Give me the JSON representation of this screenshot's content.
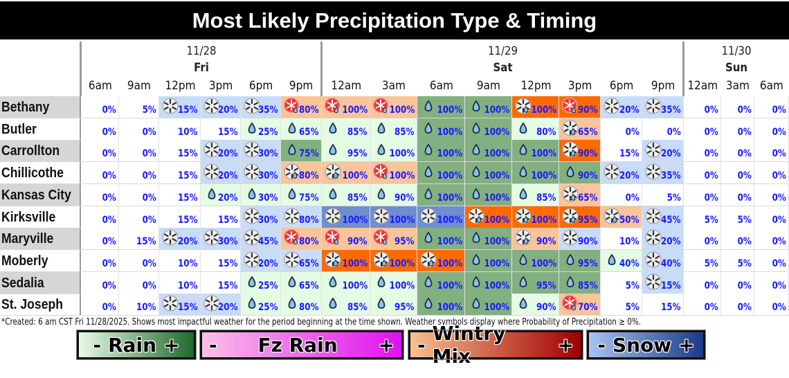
{
  "title": "Most Likely Precipitation Type & Timing",
  "colors": {
    "none": "#ffffff",
    "rain_light": "#e4fbe4",
    "rain_heavy": "#82b080",
    "snow_light": "#c8dcf8",
    "snow_heavy": "#6e8ed0",
    "mix_light": "#f8c49a",
    "mix_heavy": "#ff6a00",
    "pct_text": "#1a1aff"
  },
  "days": [
    {
      "date": "11/28",
      "name": "Fri"
    },
    {
      "date": "11/29",
      "name": "Sat"
    },
    {
      "date": "11/30",
      "name": "Sun"
    }
  ],
  "times": [
    "6am",
    "9am",
    "12pm",
    "3pm",
    "6pm",
    "9pm",
    "12am",
    "3am",
    "6am",
    "9am",
    "12pm",
    "3pm",
    "6pm",
    "9pm",
    "12am",
    "3am",
    "6am"
  ],
  "chart_data": {
    "type": "table",
    "title": "Most Likely Precipitation Type & Timing",
    "columns": [
      "Fri 6am",
      "Fri 9am",
      "Fri 12pm",
      "Fri 3pm",
      "Fri 6pm",
      "Fri 9pm",
      "Sat 12am",
      "Sat 3am",
      "Sat 6am",
      "Sat 9am",
      "Sat 12pm",
      "Sat 3pm",
      "Sat 6pm",
      "Sat 9pm",
      "Sun 12am",
      "Sun 3am",
      "Sun 6am"
    ],
    "legend": [
      "Rain",
      "Fz Rain",
      "Wintry Mix",
      "Snow"
    ],
    "rows": [
      {
        "city": "Bethany",
        "shade": true,
        "cells": [
          {
            "p": "0%",
            "t": "none"
          },
          {
            "p": "5%",
            "t": "none"
          },
          {
            "p": "15%",
            "t": "snow_light",
            "i": "snow"
          },
          {
            "p": "20%",
            "t": "snow_light",
            "i": "snow"
          },
          {
            "p": "35%",
            "t": "snow_light",
            "i": "snow"
          },
          {
            "p": "80%",
            "t": "mix_light",
            "i": "fzmix"
          },
          {
            "p": "100%",
            "t": "mix_light",
            "i": "fzmix"
          },
          {
            "p": "100%",
            "t": "mix_light",
            "i": "fzmix"
          },
          {
            "p": "100%",
            "t": "rain_heavy",
            "i": "rain"
          },
          {
            "p": "100%",
            "t": "rain_heavy",
            "i": "rain"
          },
          {
            "p": "100%",
            "t": "mix_heavy",
            "i": "snowmix"
          },
          {
            "p": "90%",
            "t": "mix_heavy",
            "i": "fzmix"
          },
          {
            "p": "20%",
            "t": "snow_light",
            "i": "snow"
          },
          {
            "p": "35%",
            "t": "snow_light",
            "i": "snow"
          },
          {
            "p": "0%",
            "t": "none"
          },
          {
            "p": "0%",
            "t": "none"
          },
          {
            "p": "0%",
            "t": "none"
          }
        ]
      },
      {
        "city": "Butler",
        "shade": false,
        "cells": [
          {
            "p": "0%",
            "t": "none"
          },
          {
            "p": "0%",
            "t": "none"
          },
          {
            "p": "10%",
            "t": "none"
          },
          {
            "p": "15%",
            "t": "none"
          },
          {
            "p": "25%",
            "t": "rain_light",
            "i": "rain"
          },
          {
            "p": "65%",
            "t": "rain_light",
            "i": "rain"
          },
          {
            "p": "85%",
            "t": "rain_light",
            "i": "rain"
          },
          {
            "p": "85%",
            "t": "rain_light",
            "i": "rain"
          },
          {
            "p": "100%",
            "t": "rain_heavy",
            "i": "rain"
          },
          {
            "p": "100%",
            "t": "rain_heavy",
            "i": "rain"
          },
          {
            "p": "80%",
            "t": "rain_light",
            "i": "rain"
          },
          {
            "p": "65%",
            "t": "mix_light",
            "i": "snowmix"
          },
          {
            "p": "0%",
            "t": "none"
          },
          {
            "p": "0%",
            "t": "none"
          },
          {
            "p": "0%",
            "t": "none"
          },
          {
            "p": "0%",
            "t": "none"
          },
          {
            "p": "0%",
            "t": "none"
          }
        ]
      },
      {
        "city": "Carrollton",
        "shade": true,
        "cells": [
          {
            "p": "0%",
            "t": "none"
          },
          {
            "p": "0%",
            "t": "none"
          },
          {
            "p": "15%",
            "t": "none"
          },
          {
            "p": "20%",
            "t": "snow_light",
            "i": "snow"
          },
          {
            "p": "30%",
            "t": "snow_light",
            "i": "snow"
          },
          {
            "p": "75%",
            "t": "rain_heavy",
            "i": "rain"
          },
          {
            "p": "95%",
            "t": "rain_light",
            "i": "rain"
          },
          {
            "p": "100%",
            "t": "rain_light",
            "i": "rain"
          },
          {
            "p": "100%",
            "t": "rain_heavy",
            "i": "rain"
          },
          {
            "p": "100%",
            "t": "rain_heavy",
            "i": "rain"
          },
          {
            "p": "100%",
            "t": "rain_heavy",
            "i": "rain"
          },
          {
            "p": "90%",
            "t": "mix_heavy",
            "i": "snowmix"
          },
          {
            "p": "15%",
            "t": "none"
          },
          {
            "p": "20%",
            "t": "snow_light",
            "i": "snow"
          },
          {
            "p": "0%",
            "t": "none"
          },
          {
            "p": "0%",
            "t": "none"
          },
          {
            "p": "0%",
            "t": "none"
          }
        ]
      },
      {
        "city": "Chillicothe",
        "shade": false,
        "cells": [
          {
            "p": "0%",
            "t": "none"
          },
          {
            "p": "0%",
            "t": "none"
          },
          {
            "p": "15%",
            "t": "none"
          },
          {
            "p": "20%",
            "t": "snow_light",
            "i": "snow"
          },
          {
            "p": "30%",
            "t": "snow_light",
            "i": "snow"
          },
          {
            "p": "80%",
            "t": "mix_light",
            "i": "snowmix"
          },
          {
            "p": "100%",
            "t": "mix_light",
            "i": "snowmix"
          },
          {
            "p": "100%",
            "t": "mix_light",
            "i": "fzmix"
          },
          {
            "p": "100%",
            "t": "rain_heavy",
            "i": "rain"
          },
          {
            "p": "100%",
            "t": "rain_heavy",
            "i": "rain"
          },
          {
            "p": "100%",
            "t": "rain_heavy",
            "i": "rain"
          },
          {
            "p": "90%",
            "t": "rain_heavy",
            "i": "rain"
          },
          {
            "p": "20%",
            "t": "snow_light",
            "i": "snow"
          },
          {
            "p": "35%",
            "t": "snow_light",
            "i": "snow"
          },
          {
            "p": "0%",
            "t": "none"
          },
          {
            "p": "0%",
            "t": "none"
          },
          {
            "p": "0%",
            "t": "none"
          }
        ]
      },
      {
        "city": "Kansas City",
        "shade": true,
        "cells": [
          {
            "p": "0%",
            "t": "none"
          },
          {
            "p": "0%",
            "t": "none"
          },
          {
            "p": "15%",
            "t": "none"
          },
          {
            "p": "20%",
            "t": "rain_light",
            "i": "rain"
          },
          {
            "p": "30%",
            "t": "rain_light",
            "i": "rain"
          },
          {
            "p": "75%",
            "t": "rain_light",
            "i": "rain"
          },
          {
            "p": "85%",
            "t": "rain_light",
            "i": "rain"
          },
          {
            "p": "90%",
            "t": "rain_light",
            "i": "rain"
          },
          {
            "p": "100%",
            "t": "rain_heavy",
            "i": "rain"
          },
          {
            "p": "100%",
            "t": "rain_heavy",
            "i": "rain"
          },
          {
            "p": "85%",
            "t": "rain_light",
            "i": "rain"
          },
          {
            "p": "65%",
            "t": "mix_light",
            "i": "snowmix"
          },
          {
            "p": "0%",
            "t": "none"
          },
          {
            "p": "5%",
            "t": "none"
          },
          {
            "p": "0%",
            "t": "none"
          },
          {
            "p": "0%",
            "t": "none"
          },
          {
            "p": "0%",
            "t": "none"
          }
        ]
      },
      {
        "city": "Kirksville",
        "shade": false,
        "cells": [
          {
            "p": "0%",
            "t": "none"
          },
          {
            "p": "0%",
            "t": "none"
          },
          {
            "p": "15%",
            "t": "none"
          },
          {
            "p": "15%",
            "t": "none"
          },
          {
            "p": "30%",
            "t": "snow_light",
            "i": "snow"
          },
          {
            "p": "80%",
            "t": "snow_light",
            "i": "snow"
          },
          {
            "p": "100%",
            "t": "snow_heavy",
            "i": "snow"
          },
          {
            "p": "100%",
            "t": "snow_heavy",
            "i": "snow"
          },
          {
            "p": "100%",
            "t": "snow_heavy",
            "i": "snow"
          },
          {
            "p": "100%",
            "t": "mix_heavy",
            "i": "snowmix"
          },
          {
            "p": "100%",
            "t": "mix_heavy",
            "i": "snowmix"
          },
          {
            "p": "95%",
            "t": "mix_heavy",
            "i": "snowmix"
          },
          {
            "p": "50%",
            "t": "mix_light",
            "i": "snowmix"
          },
          {
            "p": "45%",
            "t": "snow_light",
            "i": "snow"
          },
          {
            "p": "5%",
            "t": "none"
          },
          {
            "p": "5%",
            "t": "none"
          },
          {
            "p": "0%",
            "t": "none"
          }
        ]
      },
      {
        "city": "Maryville",
        "shade": true,
        "cells": [
          {
            "p": "0%",
            "t": "none"
          },
          {
            "p": "15%",
            "t": "none"
          },
          {
            "p": "20%",
            "t": "snow_light",
            "i": "snow"
          },
          {
            "p": "30%",
            "t": "snow_light",
            "i": "snow"
          },
          {
            "p": "45%",
            "t": "snow_light",
            "i": "snow"
          },
          {
            "p": "80%",
            "t": "mix_light",
            "i": "fzmix"
          },
          {
            "p": "90%",
            "t": "mix_light",
            "i": "fzmix"
          },
          {
            "p": "95%",
            "t": "mix_light",
            "i": "fzmix"
          },
          {
            "p": "100%",
            "t": "rain_heavy",
            "i": "rain"
          },
          {
            "p": "100%",
            "t": "rain_heavy",
            "i": "rain"
          },
          {
            "p": "90%",
            "t": "mix_light",
            "i": "snowmix"
          },
          {
            "p": "90%",
            "t": "snow_light",
            "i": "snow"
          },
          {
            "p": "10%",
            "t": "none"
          },
          {
            "p": "20%",
            "t": "snow_light",
            "i": "snow"
          },
          {
            "p": "0%",
            "t": "none"
          },
          {
            "p": "0%",
            "t": "none"
          },
          {
            "p": "0%",
            "t": "none"
          }
        ]
      },
      {
        "city": "Moberly",
        "shade": false,
        "cells": [
          {
            "p": "0%",
            "t": "none"
          },
          {
            "p": "0%",
            "t": "none"
          },
          {
            "p": "10%",
            "t": "none"
          },
          {
            "p": "15%",
            "t": "none"
          },
          {
            "p": "20%",
            "t": "snow_light",
            "i": "snow"
          },
          {
            "p": "65%",
            "t": "snow_light",
            "i": "snow"
          },
          {
            "p": "100%",
            "t": "mix_heavy",
            "i": "snowmix"
          },
          {
            "p": "100%",
            "t": "mix_heavy",
            "i": "snowmix"
          },
          {
            "p": "100%",
            "t": "mix_heavy",
            "i": "snowmix"
          },
          {
            "p": "100%",
            "t": "rain_heavy",
            "i": "rain"
          },
          {
            "p": "100%",
            "t": "rain_heavy",
            "i": "rain"
          },
          {
            "p": "95%",
            "t": "rain_heavy",
            "i": "rain"
          },
          {
            "p": "40%",
            "t": "rain_light",
            "i": "rain"
          },
          {
            "p": "40%",
            "t": "snow_light",
            "i": "snow"
          },
          {
            "p": "5%",
            "t": "none"
          },
          {
            "p": "5%",
            "t": "none"
          },
          {
            "p": "0%",
            "t": "none"
          }
        ]
      },
      {
        "city": "Sedalia",
        "shade": true,
        "cells": [
          {
            "p": "0%",
            "t": "none"
          },
          {
            "p": "0%",
            "t": "none"
          },
          {
            "p": "10%",
            "t": "none"
          },
          {
            "p": "15%",
            "t": "none"
          },
          {
            "p": "25%",
            "t": "rain_light",
            "i": "rain"
          },
          {
            "p": "65%",
            "t": "rain_light",
            "i": "rain"
          },
          {
            "p": "100%",
            "t": "rain_light",
            "i": "rain"
          },
          {
            "p": "100%",
            "t": "rain_light",
            "i": "rain"
          },
          {
            "p": "100%",
            "t": "rain_heavy",
            "i": "rain"
          },
          {
            "p": "100%",
            "t": "rain_heavy",
            "i": "rain"
          },
          {
            "p": "95%",
            "t": "rain_heavy",
            "i": "rain"
          },
          {
            "p": "85%",
            "t": "rain_heavy",
            "i": "rain"
          },
          {
            "p": "5%",
            "t": "none"
          },
          {
            "p": "15%",
            "t": "snow_light",
            "i": "snow"
          },
          {
            "p": "0%",
            "t": "none"
          },
          {
            "p": "0%",
            "t": "none"
          },
          {
            "p": "0%",
            "t": "none"
          }
        ]
      },
      {
        "city": "St. Joseph",
        "shade": false,
        "cells": [
          {
            "p": "0%",
            "t": "none"
          },
          {
            "p": "10%",
            "t": "none"
          },
          {
            "p": "15%",
            "t": "snow_light",
            "i": "snow"
          },
          {
            "p": "20%",
            "t": "snow_light",
            "i": "snow"
          },
          {
            "p": "25%",
            "t": "rain_light",
            "i": "rain"
          },
          {
            "p": "80%",
            "t": "rain_light",
            "i": "rain"
          },
          {
            "p": "85%",
            "t": "rain_light",
            "i": "rain"
          },
          {
            "p": "95%",
            "t": "rain_light",
            "i": "rain"
          },
          {
            "p": "100%",
            "t": "rain_heavy",
            "i": "rain"
          },
          {
            "p": "100%",
            "t": "rain_heavy",
            "i": "rain"
          },
          {
            "p": "90%",
            "t": "rain_light",
            "i": "rain"
          },
          {
            "p": "70%",
            "t": "mix_light",
            "i": "fzmix"
          },
          {
            "p": "5%",
            "t": "none"
          },
          {
            "p": "15%",
            "t": "none"
          },
          {
            "p": "0%",
            "t": "none"
          },
          {
            "p": "0%",
            "t": "none"
          },
          {
            "p": "0%",
            "t": "none"
          }
        ]
      }
    ]
  },
  "footnote": "*Created: 6 am CST Fri 11/28/2025. Shows most impactful weather for the period beginning at the time shown. Weather symbols display where Probability of Precipitation ≥ 0%.",
  "legend": [
    {
      "minus": "-",
      "label": "Rain",
      "plus": "+",
      "from": "#e8fbe6",
      "to": "#1e6a2a"
    },
    {
      "minus": "-",
      "label": "Fz Rain",
      "plus": "+",
      "from": "#fbc0e8",
      "to": "#e010f0"
    },
    {
      "minus": "-",
      "label": "Wintry Mix",
      "plus": "+",
      "from": "#f8c090",
      "to": "#a00000"
    },
    {
      "minus": "-",
      "label": "Snow",
      "plus": "+",
      "from": "#a8c4f0",
      "to": "#1a3a88"
    }
  ]
}
